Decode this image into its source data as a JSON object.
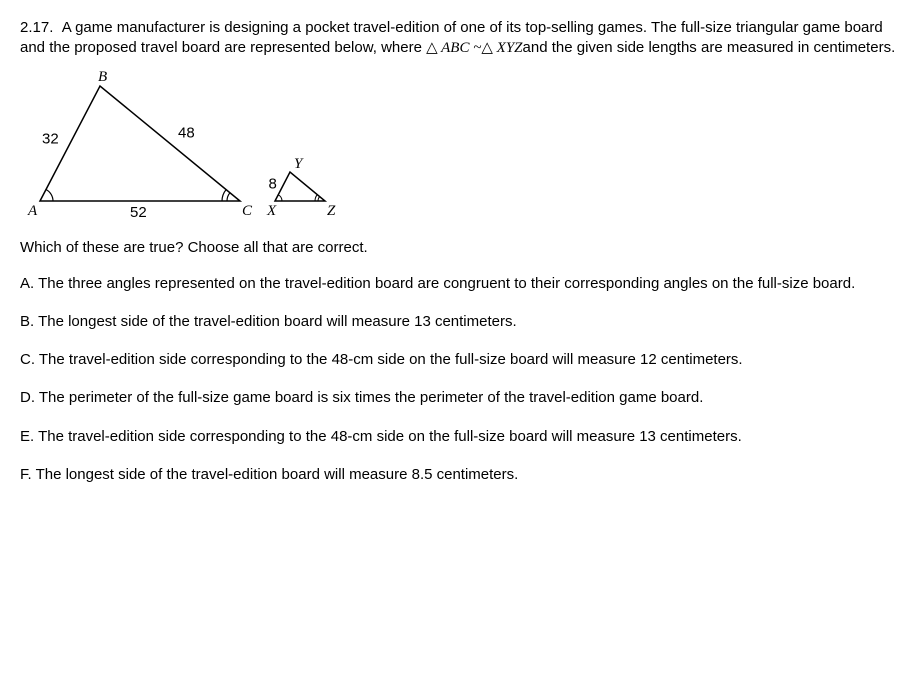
{
  "problem": {
    "number": "2.17.",
    "text_line1": "A game manufacturer is designing a pocket travel-edition of one of its top-selling games.",
    "text_line2": "The full-size triangular game board and the proposed travel board are represented below, where",
    "similarity": "△ ABC ~△ XYZ",
    "text_line3_suffix": "and the given side lengths are measured in centimeters."
  },
  "figure": {
    "large_triangle": {
      "label_A": "A",
      "label_B": "B",
      "label_C": "C",
      "side_AB": "32",
      "side_BC": "48",
      "side_AC": "52",
      "A": [
        20,
        130
      ],
      "B": [
        80,
        15
      ],
      "C": [
        220,
        130
      ],
      "tick_color": "#000000",
      "stroke_color": "#000000",
      "stroke_width": 1.5
    },
    "small_triangle": {
      "label_X": "X",
      "label_Y": "Y",
      "label_Z": "Z",
      "side_XY": "8",
      "X": [
        255,
        130
      ],
      "Y": [
        270,
        101
      ],
      "Z": [
        305,
        130
      ],
      "stroke_color": "#000000",
      "stroke_width": 1.5
    },
    "label_font": "italic 15px 'Times New Roman', serif",
    "num_font": "15px Verdana, sans-serif"
  },
  "question": "Which of these are true? Choose all that are correct.",
  "choices": {
    "A": "A. The three angles represented on the travel-edition board are congruent to their corresponding angles on the full-size board.",
    "B": "B. The longest side of the travel-edition board will measure 13 centimeters.",
    "C": "C. The travel-edition side corresponding to the 48-cm side on the full-size board will measure 12 centimeters.",
    "D": "D. The perimeter of the full-size game board is six times the perimeter of the travel-edition game board.",
    "E": "E. The travel-edition side corresponding to the 48-cm side on the full-size board will measure 13 centimeters.",
    "F": "F. The longest side of the travel-edition board will measure 8.5 centimeters."
  }
}
